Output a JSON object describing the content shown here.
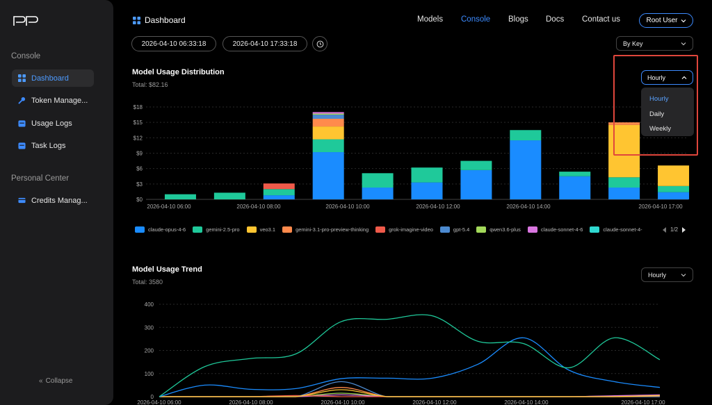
{
  "sidebar": {
    "logo": "PP",
    "console_label": "Console",
    "items": [
      {
        "label": "Dashboard",
        "icon": "dashboard-icon"
      },
      {
        "label": "Token Manage...",
        "icon": "key-icon"
      },
      {
        "label": "Usage Logs",
        "icon": "calendar-icon"
      },
      {
        "label": "Task Logs",
        "icon": "calendar-icon"
      }
    ],
    "personal_label": "Personal Center",
    "personal_items": [
      {
        "label": "Credits Manag...",
        "icon": "credit-card-icon"
      }
    ],
    "collapse_label": "Collapse"
  },
  "header": {
    "title": "Dashboard",
    "nav": [
      "Models",
      "Console",
      "Blogs",
      "Docs",
      "Contact us"
    ],
    "active_nav": "Console",
    "user_label": "Root User"
  },
  "filters": {
    "start": "2026-04-10 06:33:18",
    "end": "2026-04-10 17:33:18",
    "group_by": "By Key"
  },
  "distribution": {
    "title": "Model Usage Distribution",
    "total": "Total: $82.16",
    "granularity": "Hourly",
    "dropdown_options": [
      "Hourly",
      "Daily",
      "Weekly"
    ],
    "selected_option": "Hourly",
    "page": "1/2"
  },
  "trend": {
    "title": "Model Usage Trend",
    "total": "Total: 3580",
    "granularity": "Hourly"
  },
  "colors": {
    "accent": "#3d8bff",
    "highlight": "#e0463c"
  },
  "chart_data": [
    {
      "type": "bar",
      "stacked": true,
      "x_ticks": [
        "2026-04-10 06:00",
        "2026-04-10 08:00",
        "2026-04-10 10:00",
        "2026-04-10 12:00",
        "2026-04-10 14:00",
        "2026-04-10 17:00"
      ],
      "y_ticks": [
        "$18",
        "$15",
        "$12",
        "$9",
        "$6",
        "$3",
        "$0"
      ],
      "ylim": [
        0,
        18
      ],
      "categories": [
        "07:00",
        "08:00",
        "09:00",
        "10:00",
        "11:00",
        "12:00",
        "13:00",
        "14:00",
        "15:00",
        "16:00",
        "17:00"
      ],
      "series": [
        {
          "name": "claude-opus-4-6",
          "color": "#1a8cff",
          "values": [
            0,
            0,
            0.8,
            9.2,
            2.3,
            3.3,
            5.7,
            11.5,
            4.5,
            2.3,
            1.4
          ]
        },
        {
          "name": "gemini-2.5-pro",
          "color": "#1fc99a",
          "values": [
            1.0,
            1.3,
            1.2,
            2.5,
            2.8,
            2.9,
            1.8,
            2.0,
            0.9,
            2.0,
            1.2
          ]
        },
        {
          "name": "veo3.1",
          "color": "#ffc531",
          "values": [
            0,
            0,
            0,
            2.5,
            0,
            0,
            0,
            0,
            0,
            10.2,
            4.0
          ]
        },
        {
          "name": "gemini-3.1-pro-preview-thinking",
          "color": "#ff8a4c",
          "values": [
            0,
            0,
            0,
            1.5,
            0,
            0,
            0,
            0,
            0,
            0.5,
            0
          ]
        },
        {
          "name": "grok-imagine-video",
          "color": "#ef5a4a",
          "values": [
            0,
            0,
            1.1,
            0,
            0,
            0,
            0,
            0,
            0,
            0,
            0
          ]
        },
        {
          "name": "gpt-5.4",
          "color": "#4c8ad0",
          "values": [
            0,
            0,
            0,
            0.8,
            0,
            0,
            0,
            0,
            0,
            0,
            0
          ]
        },
        {
          "name": "qwen3.6-plus",
          "color": "#a3d95a",
          "values": [
            0,
            0,
            0,
            0.2,
            0,
            0,
            0,
            0,
            0,
            0,
            0
          ]
        },
        {
          "name": "claude-sonnet-4-6",
          "color": "#d976e0",
          "values": [
            0,
            0,
            0,
            0.3,
            0,
            0,
            0,
            0,
            0,
            0,
            0
          ]
        },
        {
          "name": "claude-sonnet-4-",
          "color": "#2fd8d0",
          "values": [
            0,
            0,
            0,
            0,
            0,
            0,
            0,
            0,
            0,
            0,
            0
          ]
        }
      ]
    },
    {
      "type": "line",
      "x_ticks": [
        "2026-04-10 06:00",
        "2026-04-10 08:00",
        "2026-04-10 10:00",
        "2026-04-10 12:00",
        "2026-04-10 14:00",
        "2026-04-10 17:00"
      ],
      "y_ticks": [
        "400",
        "300",
        "200",
        "100",
        "0"
      ],
      "ylim": [
        0,
        400
      ],
      "x": [
        "06:00",
        "07:00",
        "08:00",
        "09:00",
        "10:00",
        "11:00",
        "12:00",
        "13:00",
        "14:00",
        "15:00",
        "16:00",
        "17:00"
      ],
      "series": [
        {
          "name": "gemini-2.5-pro",
          "color": "#1fc99a",
          "values": [
            0,
            130,
            165,
            185,
            325,
            335,
            350,
            240,
            230,
            125,
            255,
            160
          ]
        },
        {
          "name": "claude-opus-4-6",
          "color": "#1a8cff",
          "values": [
            0,
            50,
            32,
            35,
            78,
            80,
            80,
            140,
            255,
            115,
            65,
            40
          ]
        },
        {
          "name": "veo3.1",
          "color": "#ffc531",
          "values": [
            0,
            0,
            0,
            0,
            30,
            0,
            0,
            0,
            0,
            0,
            0,
            5
          ]
        },
        {
          "name": "gemini-3.1-pro-preview-thinking",
          "color": "#ff8a4c",
          "values": [
            0,
            0,
            0,
            0,
            40,
            0,
            0,
            0,
            0,
            0,
            0,
            3
          ]
        },
        {
          "name": "gpt-5.4",
          "color": "#4c8ad0",
          "values": [
            0,
            0,
            0,
            0,
            65,
            0,
            0,
            0,
            0,
            0,
            0,
            0
          ]
        },
        {
          "name": "grok-imagine-video",
          "color": "#ef5a4a",
          "values": [
            0,
            0,
            0,
            5,
            0,
            0,
            0,
            0,
            0,
            0,
            0,
            0
          ]
        },
        {
          "name": "claude-sonnet-4-6",
          "color": "#d976e0",
          "values": [
            0,
            0,
            0,
            0,
            8,
            0,
            0,
            0,
            0,
            0,
            4,
            8
          ]
        },
        {
          "name": "qwen3.6-plus",
          "color": "#a3d95a",
          "values": [
            0,
            0,
            0,
            0,
            15,
            0,
            0,
            0,
            0,
            0,
            0,
            0
          ]
        }
      ]
    }
  ]
}
